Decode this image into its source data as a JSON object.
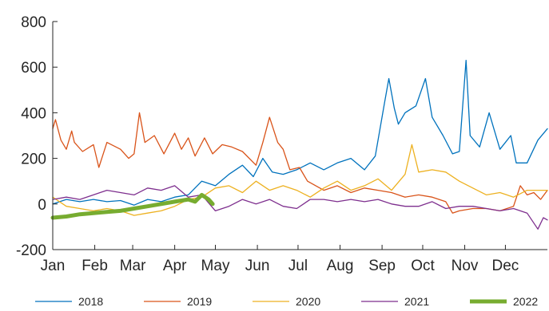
{
  "chart_data": {
    "type": "line",
    "x_ticks": [
      "Jan",
      "Feb",
      "Mar",
      "Apr",
      "May",
      "Jun",
      "Jul",
      "Aug",
      "Sep",
      "Oct",
      "Nov",
      "Dec"
    ],
    "x_range_days": [
      0,
      365
    ],
    "ylim": [
      -200,
      800
    ],
    "y_ticks": [
      -200,
      0,
      200,
      400,
      600,
      800
    ],
    "grid": false,
    "legend_placement": "bottom",
    "series": [
      {
        "name": "2018",
        "color": "#0072BD",
        "points": [
          [
            0,
            0
          ],
          [
            10,
            20
          ],
          [
            20,
            10
          ],
          [
            30,
            20
          ],
          [
            40,
            10
          ],
          [
            50,
            15
          ],
          [
            60,
            -5
          ],
          [
            70,
            20
          ],
          [
            80,
            10
          ],
          [
            90,
            30
          ],
          [
            100,
            40
          ],
          [
            110,
            100
          ],
          [
            120,
            80
          ],
          [
            130,
            130
          ],
          [
            140,
            170
          ],
          [
            148,
            120
          ],
          [
            155,
            200
          ],
          [
            162,
            140
          ],
          [
            170,
            130
          ],
          [
            180,
            150
          ],
          [
            190,
            180
          ],
          [
            200,
            150
          ],
          [
            210,
            180
          ],
          [
            220,
            200
          ],
          [
            230,
            150
          ],
          [
            238,
            210
          ],
          [
            245,
            450
          ],
          [
            248,
            550
          ],
          [
            252,
            420
          ],
          [
            255,
            350
          ],
          [
            260,
            400
          ],
          [
            268,
            430
          ],
          [
            275,
            550
          ],
          [
            280,
            380
          ],
          [
            288,
            300
          ],
          [
            295,
            220
          ],
          [
            300,
            230
          ],
          [
            305,
            630
          ],
          [
            308,
            300
          ],
          [
            315,
            250
          ],
          [
            322,
            400
          ],
          [
            330,
            240
          ],
          [
            338,
            300
          ],
          [
            342,
            180
          ],
          [
            350,
            180
          ],
          [
            358,
            280
          ],
          [
            365,
            330
          ]
        ],
        "line_width": 1.3
      },
      {
        "name": "2019",
        "color": "#D95319",
        "points": [
          [
            0,
            330
          ],
          [
            2,
            370
          ],
          [
            6,
            280
          ],
          [
            10,
            240
          ],
          [
            14,
            320
          ],
          [
            16,
            270
          ],
          [
            22,
            230
          ],
          [
            30,
            260
          ],
          [
            34,
            160
          ],
          [
            40,
            270
          ],
          [
            50,
            240
          ],
          [
            56,
            200
          ],
          [
            60,
            220
          ],
          [
            64,
            400
          ],
          [
            68,
            270
          ],
          [
            75,
            300
          ],
          [
            82,
            220
          ],
          [
            90,
            310
          ],
          [
            95,
            240
          ],
          [
            100,
            290
          ],
          [
            105,
            210
          ],
          [
            112,
            290
          ],
          [
            118,
            220
          ],
          [
            125,
            260
          ],
          [
            132,
            250
          ],
          [
            140,
            230
          ],
          [
            150,
            170
          ],
          [
            155,
            270
          ],
          [
            160,
            380
          ],
          [
            166,
            270
          ],
          [
            170,
            240
          ],
          [
            175,
            150
          ],
          [
            182,
            160
          ],
          [
            188,
            100
          ],
          [
            200,
            60
          ],
          [
            210,
            80
          ],
          [
            220,
            50
          ],
          [
            230,
            70
          ],
          [
            240,
            60
          ],
          [
            250,
            50
          ],
          [
            260,
            30
          ],
          [
            270,
            40
          ],
          [
            280,
            30
          ],
          [
            290,
            10
          ],
          [
            295,
            -40
          ],
          [
            300,
            -30
          ],
          [
            310,
            -20
          ],
          [
            320,
            -20
          ],
          [
            330,
            -30
          ],
          [
            340,
            -10
          ],
          [
            345,
            80
          ],
          [
            350,
            40
          ],
          [
            355,
            50
          ],
          [
            360,
            20
          ],
          [
            365,
            60
          ]
        ],
        "line_width": 1.3
      },
      {
        "name": "2020",
        "color": "#EDB120",
        "points": [
          [
            0,
            30
          ],
          [
            10,
            -10
          ],
          [
            20,
            -20
          ],
          [
            30,
            -30
          ],
          [
            40,
            -20
          ],
          [
            50,
            -30
          ],
          [
            60,
            -50
          ],
          [
            70,
            -40
          ],
          [
            80,
            -30
          ],
          [
            90,
            -10
          ],
          [
            100,
            20
          ],
          [
            110,
            30
          ],
          [
            120,
            70
          ],
          [
            130,
            80
          ],
          [
            140,
            50
          ],
          [
            150,
            100
          ],
          [
            160,
            60
          ],
          [
            170,
            80
          ],
          [
            180,
            60
          ],
          [
            190,
            30
          ],
          [
            200,
            70
          ],
          [
            210,
            100
          ],
          [
            220,
            60
          ],
          [
            230,
            80
          ],
          [
            240,
            110
          ],
          [
            250,
            60
          ],
          [
            260,
            130
          ],
          [
            265,
            260
          ],
          [
            270,
            140
          ],
          [
            280,
            150
          ],
          [
            290,
            140
          ],
          [
            300,
            100
          ],
          [
            310,
            70
          ],
          [
            320,
            40
          ],
          [
            330,
            50
          ],
          [
            340,
            30
          ],
          [
            350,
            60
          ],
          [
            365,
            60
          ]
        ],
        "line_width": 1.3
      },
      {
        "name": "2021",
        "color": "#7E2F8E",
        "points": [
          [
            0,
            20
          ],
          [
            10,
            30
          ],
          [
            20,
            20
          ],
          [
            30,
            40
          ],
          [
            40,
            60
          ],
          [
            50,
            50
          ],
          [
            60,
            40
          ],
          [
            70,
            70
          ],
          [
            80,
            60
          ],
          [
            90,
            80
          ],
          [
            100,
            30
          ],
          [
            110,
            40
          ],
          [
            120,
            -30
          ],
          [
            130,
            -10
          ],
          [
            140,
            20
          ],
          [
            150,
            0
          ],
          [
            160,
            20
          ],
          [
            170,
            -10
          ],
          [
            180,
            -20
          ],
          [
            190,
            20
          ],
          [
            200,
            20
          ],
          [
            210,
            10
          ],
          [
            220,
            20
          ],
          [
            230,
            10
          ],
          [
            240,
            20
          ],
          [
            250,
            0
          ],
          [
            260,
            -10
          ],
          [
            270,
            -10
          ],
          [
            280,
            10
          ],
          [
            290,
            -20
          ],
          [
            300,
            -10
          ],
          [
            310,
            -10
          ],
          [
            320,
            -20
          ],
          [
            330,
            -30
          ],
          [
            340,
            -20
          ],
          [
            350,
            -40
          ],
          [
            358,
            -110
          ],
          [
            362,
            -60
          ],
          [
            365,
            -70
          ]
        ],
        "line_width": 1.3
      },
      {
        "name": "2022",
        "color": "#77AC30",
        "points": [
          [
            0,
            -60
          ],
          [
            10,
            -55
          ],
          [
            20,
            -45
          ],
          [
            30,
            -40
          ],
          [
            40,
            -35
          ],
          [
            50,
            -30
          ],
          [
            60,
            -20
          ],
          [
            70,
            -10
          ],
          [
            80,
            0
          ],
          [
            90,
            10
          ],
          [
            100,
            20
          ],
          [
            105,
            10
          ],
          [
            110,
            40
          ],
          [
            115,
            20
          ],
          [
            118,
            0
          ]
        ],
        "line_width": 5
      }
    ]
  }
}
